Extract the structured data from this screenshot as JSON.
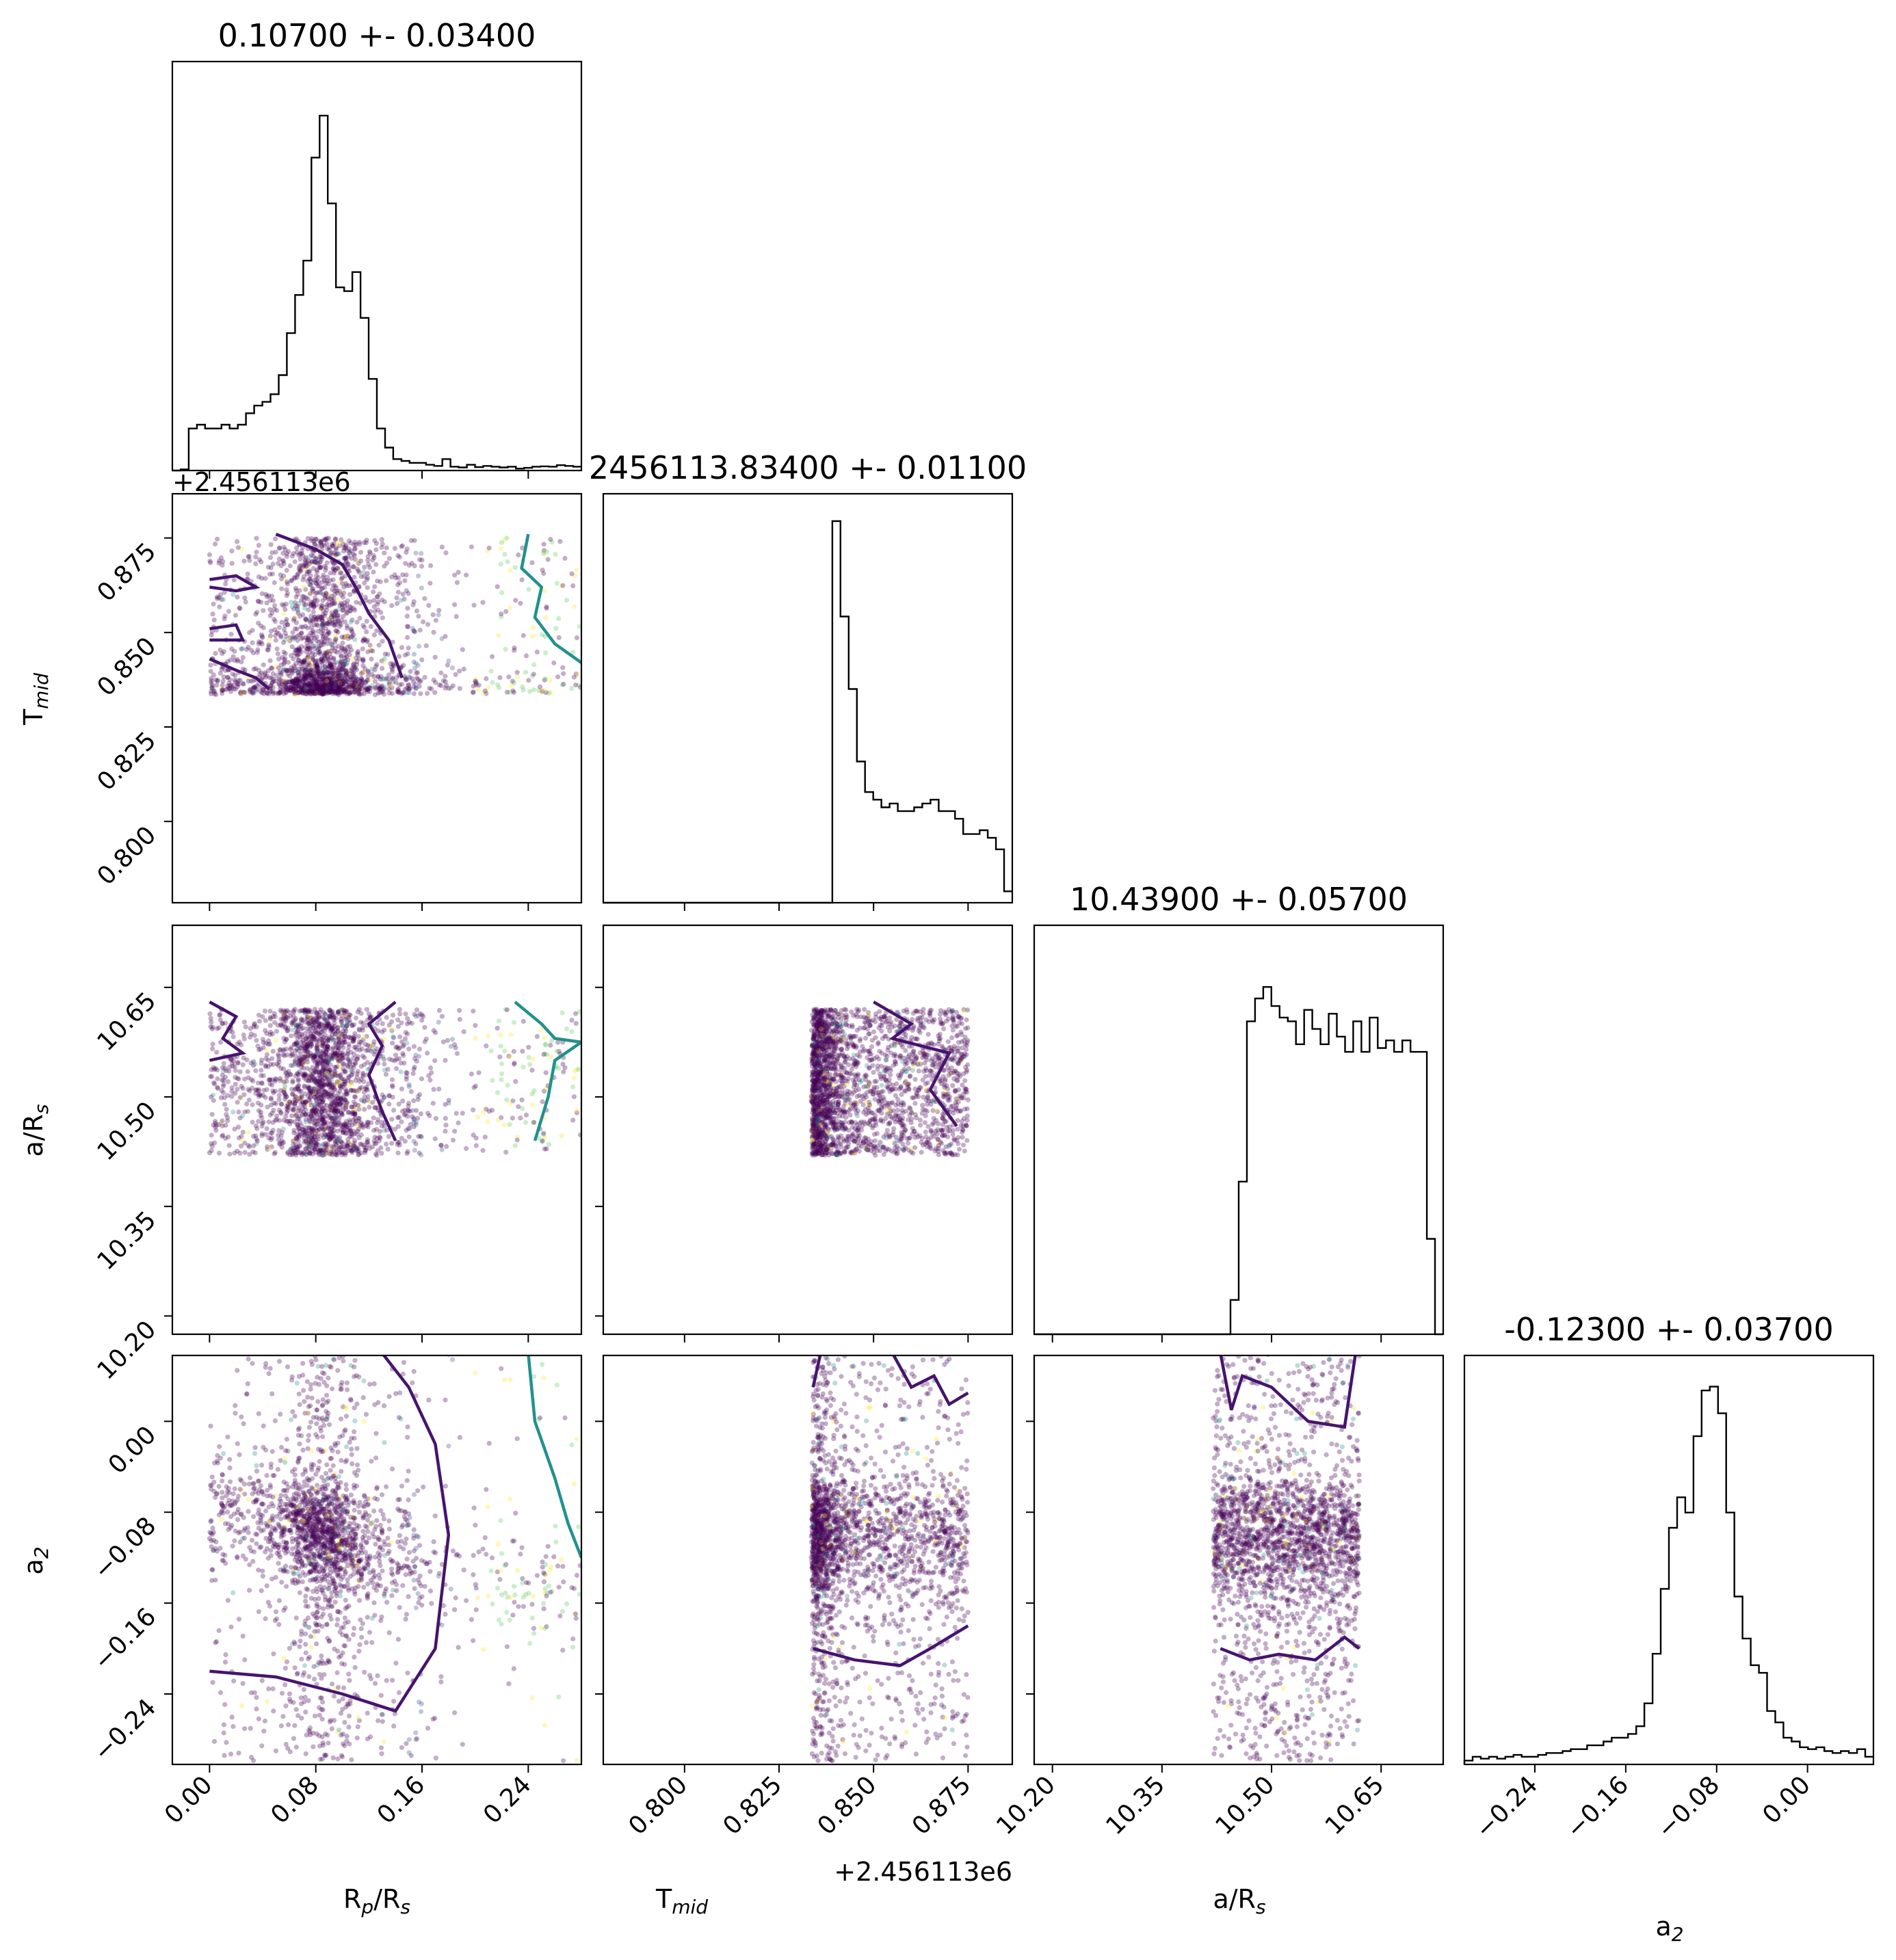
{
  "chart_data": {
    "type": "scatter",
    "subtype": "corner-plot",
    "parameters": [
      {
        "key": "rp",
        "label_main": "R",
        "label_sub": "p",
        "label_mid": "/R",
        "label_sub2": "s",
        "range": [
          -0.028,
          0.28
        ],
        "ticks": [
          0.0,
          0.08,
          0.16,
          0.24
        ],
        "tick_labels": [
          "0.00",
          "0.08",
          "0.16",
          "0.24"
        ],
        "title": "0.10700 +- 0.03400",
        "median": 0.107,
        "sigma": 0.034
      },
      {
        "key": "tmid",
        "label_main": "T",
        "label_sub": "mid",
        "label_mid": "",
        "label_sub2": "",
        "range": [
          0.7785,
          0.8867
        ],
        "ticks": [
          0.8,
          0.825,
          0.85,
          0.875
        ],
        "tick_labels": [
          "0.800",
          "0.825",
          "0.850",
          "0.875"
        ],
        "offset_label": "+2.456113e6",
        "title": "2456113.83400 +- 0.01100",
        "median": 0.834,
        "sigma": 0.011
      },
      {
        "key": "ars",
        "label_main": "a/R",
        "label_sub": "s",
        "label_mid": "",
        "label_sub2": "",
        "range": [
          10.175,
          10.735
        ],
        "ticks": [
          10.2,
          10.35,
          10.5,
          10.65
        ],
        "tick_labels": [
          "10.20",
          "10.35",
          "10.50",
          "10.65"
        ],
        "title": "10.43900 +- 0.05700",
        "median": 10.439,
        "sigma": 0.057
      },
      {
        "key": "a2",
        "label_main": "a",
        "label_sub": "2",
        "label_mid": "",
        "label_sub2": "",
        "range": [
          -0.302,
          0.058
        ],
        "ticks": [
          -0.24,
          -0.16,
          -0.08,
          0.0
        ],
        "tick_labels": [
          "−0.24",
          "−0.16",
          "−0.08",
          "0.00"
        ],
        "title": "-0.12300 +- 0.03700",
        "median": -0.123,
        "sigma": 0.037
      }
    ],
    "top_left_offset_label": "+2.456113e6",
    "histograms": {
      "rp": [
        0.0,
        0.003,
        0.11,
        0.12,
        0.11,
        0.11,
        0.12,
        0.11,
        0.12,
        0.15,
        0.17,
        0.18,
        0.2,
        0.25,
        0.36,
        0.46,
        0.55,
        0.82,
        0.93,
        0.7,
        0.48,
        0.47,
        0.52,
        0.4,
        0.24,
        0.11,
        0.06,
        0.03,
        0.025,
        0.02,
        0.02,
        0.015,
        0.012,
        0.03,
        0.01,
        0.008,
        0.015,
        0.009,
        0.012,
        0.01,
        0.008,
        0.01,
        0.005,
        0.007,
        0.01,
        0.011,
        0.01,
        0.014,
        0.012,
        0.01
      ],
      "tmid": [
        0.0,
        0.0,
        0.0,
        0.0,
        0.0,
        0.0,
        0.0,
        0.0,
        0.0,
        0.0,
        0.0,
        0.0,
        0.0,
        0.0,
        0.0,
        0.0,
        0.0,
        0.0,
        0.0,
        0.0,
        0.0,
        0.0,
        0.0,
        0.0,
        0.0,
        0.0,
        0.0,
        0.0,
        1.0,
        0.75,
        0.56,
        0.37,
        0.29,
        0.27,
        0.25,
        0.26,
        0.24,
        0.24,
        0.25,
        0.26,
        0.27,
        0.24,
        0.24,
        0.22,
        0.18,
        0.18,
        0.19,
        0.17,
        0.14,
        0.03
      ],
      "ars": [
        0.0,
        0.0,
        0.0,
        0.0,
        0.0,
        0.0,
        0.0,
        0.0,
        0.0,
        0.0,
        0.0,
        0.0,
        0.0,
        0.0,
        0.0,
        0.0,
        0.0,
        0.0,
        0.0,
        0.0,
        0.0,
        0.0,
        0.0,
        0.0,
        0.09,
        0.4,
        0.82,
        0.88,
        0.91,
        0.86,
        0.83,
        0.82,
        0.76,
        0.85,
        0.8,
        0.76,
        0.84,
        0.78,
        0.74,
        0.82,
        0.74,
        0.83,
        0.75,
        0.77,
        0.74,
        0.77,
        0.74,
        0.74,
        0.25,
        0.0
      ],
      "a2": [
        0.01,
        0.02,
        0.015,
        0.02,
        0.015,
        0.02,
        0.025,
        0.02,
        0.02,
        0.025,
        0.03,
        0.03,
        0.035,
        0.04,
        0.04,
        0.05,
        0.05,
        0.06,
        0.07,
        0.07,
        0.08,
        0.1,
        0.16,
        0.29,
        0.46,
        0.62,
        0.7,
        0.66,
        0.86,
        0.98,
        0.99,
        0.92,
        0.66,
        0.44,
        0.33,
        0.26,
        0.24,
        0.14,
        0.11,
        0.07,
        0.06,
        0.045,
        0.04,
        0.045,
        0.035,
        0.03,
        0.035,
        0.03,
        0.04,
        0.02
      ]
    },
    "samples_note": "MCMC posterior samples, dark purple = high density, yellow = outliers"
  }
}
